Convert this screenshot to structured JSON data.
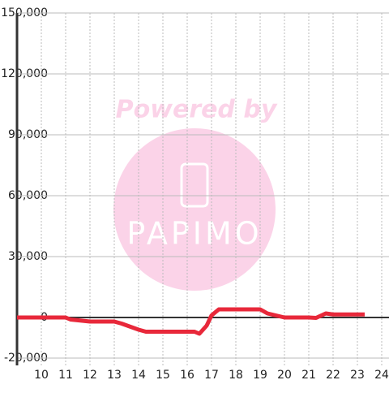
{
  "chart_data": {
    "type": "line",
    "x": [
      9,
      11,
      11.2,
      12,
      13,
      13.3,
      14,
      14.3,
      15,
      16.3,
      16.5,
      16.8,
      17,
      17.3,
      18,
      19,
      19.3,
      20,
      21,
      21.3,
      21.7,
      22,
      23.3
    ],
    "series": [
      {
        "color": "#e8283a",
        "values": [
          0,
          0,
          -1000,
          -2000,
          -2000,
          -3000,
          -6000,
          -7000,
          -7000,
          -7000,
          -8000,
          -4000,
          1000,
          4000,
          4000,
          4000,
          2000,
          0,
          0,
          -200,
          2000,
          1500,
          1500
        ]
      }
    ],
    "xlim": [
      9,
      24.3
    ],
    "xticks": [
      10,
      11,
      12,
      13,
      14,
      15,
      16,
      17,
      18,
      19,
      20,
      21,
      22,
      23,
      24
    ],
    "ylim": [
      -23600,
      150000
    ],
    "yticks": [
      {
        "value": 150000,
        "label": "150,000"
      },
      {
        "value": 120000,
        "label": "120,000"
      },
      {
        "value": 90000,
        "label": "90,000"
      },
      {
        "value": 60000,
        "label": "60,000"
      },
      {
        "value": 30000,
        "label": "30,000"
      },
      0,
      {
        "value": -20000,
        "label": "-20,000"
      }
    ],
    "grid": true,
    "watermark": {
      "text": "Powered by",
      "logo": "PAPIMO"
    }
  }
}
